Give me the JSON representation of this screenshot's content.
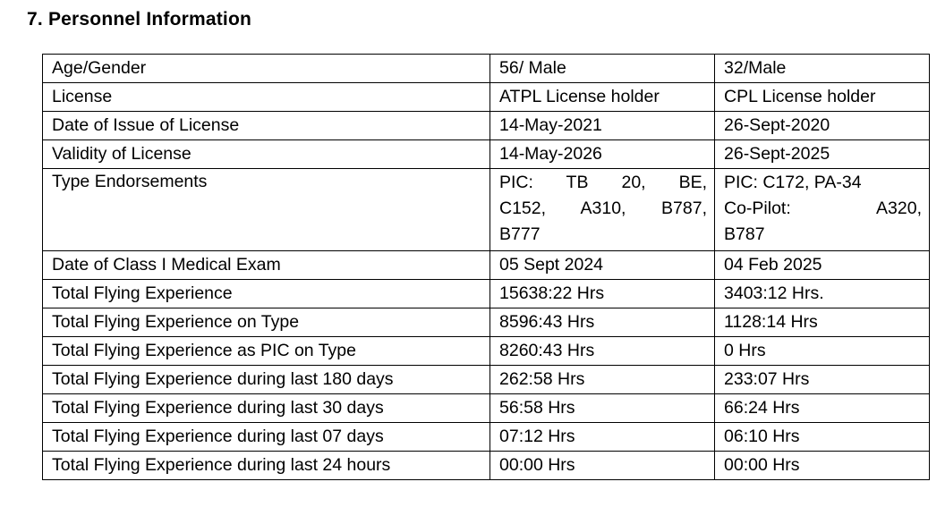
{
  "page": {
    "title": "7. Personnel Information"
  },
  "table": {
    "rows": [
      {
        "label": "Age/Gender",
        "col1": "56/ Male",
        "col2": "32/Male"
      },
      {
        "label": "License",
        "col1": "ATPL License holder",
        "col2": "CPL License holder"
      },
      {
        "label": "Date of Issue of License",
        "col1": "14-May-2021",
        "col2": "26-Sept-2020"
      },
      {
        "label": "Validity of License",
        "col1": "14-May-2026",
        "col2": "26-Sept-2025"
      },
      {
        "label": "Type Endorsements",
        "col1_lines": [
          "PIC: TB 20, BE,",
          "C152, A310, B787,",
          "B777"
        ],
        "col2_lines": [
          "PIC: C172, PA-34",
          "Co-Pilot: A320,",
          "B787"
        ]
      },
      {
        "label": "Date of Class I Medical Exam",
        "col1": "05 Sept 2024",
        "col2": "04 Feb 2025"
      },
      {
        "label": "Total Flying Experience",
        "col1": "15638:22 Hrs",
        "col2": "3403:12 Hrs."
      },
      {
        "label": "Total Flying Experience on Type",
        "col1": "8596:43 Hrs",
        "col2": "1128:14 Hrs"
      },
      {
        "label": "Total Flying Experience as PIC on Type",
        "col1": "8260:43 Hrs",
        "col2": "0 Hrs"
      },
      {
        "label": "Total Flying Experience during last 180 days",
        "col1": "262:58 Hrs",
        "col2": "233:07 Hrs"
      },
      {
        "label": "Total Flying Experience during last 30 days",
        "col1": "56:58 Hrs",
        "col2": "66:24 Hrs"
      },
      {
        "label": "Total Flying Experience during last 07 days",
        "col1": "07:12 Hrs",
        "col2": "06:10 Hrs"
      },
      {
        "label": "Total Flying Experience during last 24 hours",
        "col1": "00:00 Hrs",
        "col2": "00:00 Hrs"
      }
    ]
  }
}
